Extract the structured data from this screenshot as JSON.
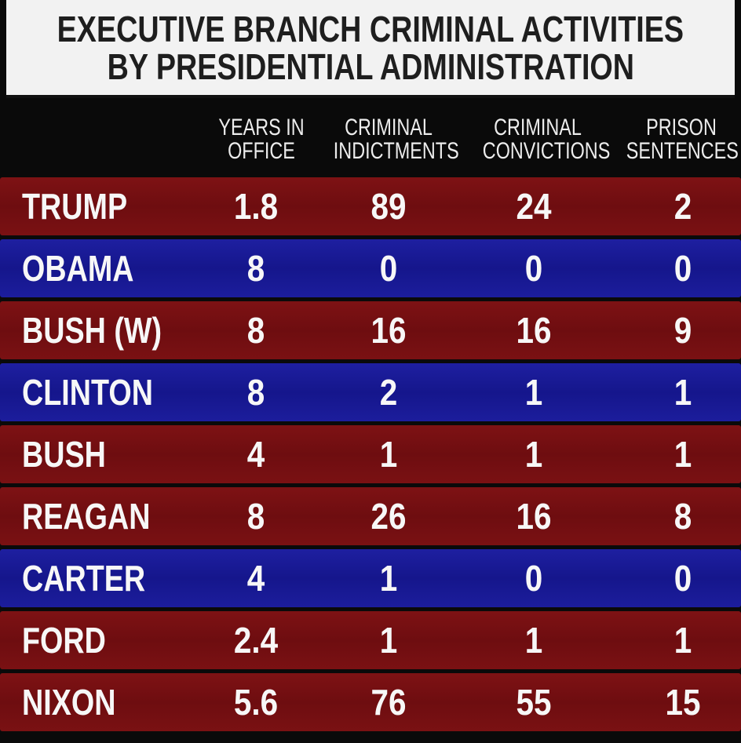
{
  "title": {
    "line1": "EXECUTIVE BRANCH CRIMINAL ACTIVITIES",
    "line2": "BY PRESIDENTIAL ADMINISTRATION"
  },
  "chart_data": {
    "type": "table",
    "title": "EXECUTIVE BRANCH CRIMINAL ACTIVITIES BY PRESIDENTIAL ADMINISTRATION",
    "columns": [
      {
        "line1": "YEARS IN",
        "line2": "OFFICE"
      },
      {
        "line1": "CRIMINAL",
        "line2": "INDICTMENTS"
      },
      {
        "line1": "CRIMINAL",
        "line2": "CONVICTIONS"
      },
      {
        "line1": "PRISON",
        "line2": "SENTENCES"
      }
    ],
    "rows": [
      {
        "name": "TRUMP",
        "party_color": "#7a1113",
        "values": [
          "1.8",
          "89",
          "24",
          "2"
        ]
      },
      {
        "name": "OBAMA",
        "party_color": "#1a1b98",
        "values": [
          "8",
          "0",
          "0",
          "0"
        ]
      },
      {
        "name": "BUSH (W)",
        "party_color": "#7a1113",
        "values": [
          "8",
          "16",
          "16",
          "9"
        ]
      },
      {
        "name": "CLINTON",
        "party_color": "#1a1b98",
        "values": [
          "8",
          "2",
          "1",
          "1"
        ]
      },
      {
        "name": "BUSH",
        "party_color": "#7a1113",
        "values": [
          "4",
          "1",
          "1",
          "1"
        ]
      },
      {
        "name": "REAGAN",
        "party_color": "#7a1113",
        "values": [
          "8",
          "26",
          "16",
          "8"
        ]
      },
      {
        "name": "CARTER",
        "party_color": "#1a1b98",
        "values": [
          "4",
          "1",
          "0",
          "0"
        ]
      },
      {
        "name": "FORD",
        "party_color": "#7a1113",
        "values": [
          "2.4",
          "1",
          "1",
          "1"
        ]
      },
      {
        "name": "NIXON",
        "party_color": "#7a1113",
        "values": [
          "5.6",
          "76",
          "55",
          "15"
        ]
      }
    ]
  },
  "colors": {
    "republican": "#7a1113",
    "democrat": "#1a1b98",
    "background": "#0a0a0a",
    "title_background": "#f2f2f2"
  }
}
